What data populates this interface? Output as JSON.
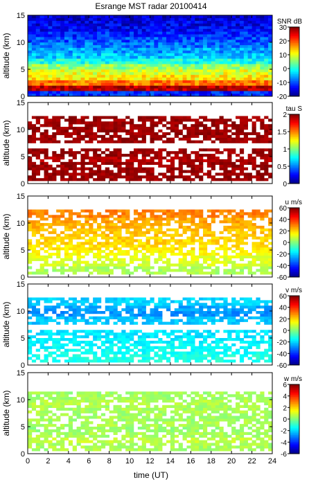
{
  "figure": {
    "title": "Esrange MST radar 20100414",
    "xlabel": "time (UT)"
  },
  "chart_data": [
    {
      "type": "heatmap",
      "ylabel": "altitude (km)",
      "xlim": [
        0,
        24
      ],
      "ylim": [
        0,
        15
      ],
      "xticks": [
        0,
        2,
        4,
        6,
        8,
        10,
        12,
        14,
        16,
        18,
        20,
        22,
        24
      ],
      "yticks": [
        0,
        5,
        10,
        15
      ],
      "colorbar": {
        "label": "SNR dB",
        "min": -20,
        "max": 30,
        "ticks": [
          -20,
          -10,
          0,
          10,
          20,
          30
        ]
      },
      "profile": {
        "altitudes_km": [
          0.5,
          1.5,
          2.5,
          3.5,
          4.5,
          5.5,
          6.5,
          7.5,
          8.5,
          9.5,
          10.5,
          11.5,
          12.5,
          13.5,
          14.5
        ],
        "mean_values": [
          -12,
          28,
          18,
          12,
          10,
          6,
          0,
          -4,
          -6,
          -8,
          -10,
          -12,
          -14,
          -15,
          -16
        ]
      },
      "coverage": "full"
    },
    {
      "type": "heatmap",
      "ylabel": "altitude (km)",
      "xlim": [
        0,
        24
      ],
      "ylim": [
        0,
        15
      ],
      "xticks": [
        0,
        2,
        4,
        6,
        8,
        10,
        12,
        14,
        16,
        18,
        20,
        22,
        24
      ],
      "yticks": [
        0,
        5,
        10,
        15
      ],
      "colorbar": {
        "label": "tau S",
        "min": 0,
        "max": 2,
        "ticks": [
          0,
          0.5,
          1,
          1.5,
          2
        ]
      },
      "profile": {
        "altitudes_km": [
          1.5,
          2.5,
          3.5,
          4.5,
          5.5,
          8.5,
          9.5,
          10.5,
          11.5
        ],
        "mean_values": [
          1.95,
          1.95,
          1.95,
          1.9,
          1.95,
          1.95,
          1.95,
          1.95,
          1.95
        ]
      },
      "coverage": "sparse"
    },
    {
      "type": "heatmap",
      "ylabel": "altitude (km)",
      "xlim": [
        0,
        24
      ],
      "ylim": [
        0,
        15
      ],
      "xticks": [
        0,
        2,
        4,
        6,
        8,
        10,
        12,
        14,
        16,
        18,
        20,
        22,
        24
      ],
      "yticks": [
        0,
        5,
        10,
        15
      ],
      "colorbar": {
        "label": "u m/s",
        "min": -60,
        "max": 60,
        "ticks": [
          -60,
          -40,
          -20,
          0,
          20,
          40,
          60
        ]
      },
      "profile": {
        "altitudes_km": [
          1.5,
          2.5,
          3.5,
          4.5,
          5.5,
          6.5,
          8.5,
          9.5,
          10.5,
          11.5
        ],
        "mean_values": [
          5,
          10,
          12,
          15,
          18,
          20,
          22,
          24,
          26,
          30
        ]
      },
      "coverage": "sparse"
    },
    {
      "type": "heatmap",
      "ylabel": "altitude (km)",
      "xlim": [
        0,
        24
      ],
      "ylim": [
        0,
        15
      ],
      "xticks": [
        0,
        2,
        4,
        6,
        8,
        10,
        12,
        14,
        16,
        18,
        20,
        22,
        24
      ],
      "yticks": [
        0,
        5,
        10,
        15
      ],
      "colorbar": {
        "label": "v m/s",
        "min": -60,
        "max": 60,
        "ticks": [
          -60,
          -40,
          -20,
          0,
          20,
          40,
          60
        ]
      },
      "profile": {
        "altitudes_km": [
          1.5,
          2.5,
          3.5,
          4.5,
          5.5,
          8.5,
          9.5,
          10.5,
          11.5
        ],
        "mean_values": [
          -12,
          -14,
          -15,
          -16,
          -18,
          -22,
          -28,
          -26,
          -20
        ]
      },
      "coverage": "sparse"
    },
    {
      "type": "heatmap",
      "ylabel": "altitude (km)",
      "xlim": [
        0,
        24
      ],
      "ylim": [
        0,
        15
      ],
      "xticks": [
        0,
        2,
        4,
        6,
        8,
        10,
        12,
        14,
        16,
        18,
        20,
        22,
        24
      ],
      "yticks": [
        0,
        5,
        10,
        15
      ],
      "colorbar": {
        "label": "w m/s",
        "min": -6,
        "max": 6,
        "ticks": [
          -6,
          -4,
          -2,
          0,
          2,
          4,
          6
        ]
      },
      "profile": {
        "altitudes_km": [
          1.5,
          2.5,
          3.5,
          4.5,
          5.5,
          6.5,
          8.5,
          9.5,
          10.5
        ],
        "mean_values": [
          0.5,
          0.8,
          0.5,
          0.3,
          0.5,
          0.4,
          0.5,
          0.6,
          0.4
        ]
      },
      "coverage": "sparse"
    }
  ]
}
